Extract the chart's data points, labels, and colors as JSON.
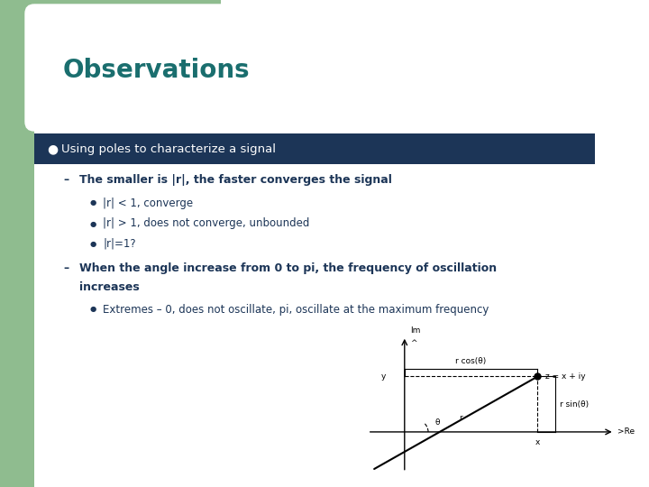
{
  "title": "Observations",
  "title_color": "#1a6e6e",
  "title_fontsize": 20,
  "bg_color": "#ffffff",
  "left_bar_color": "#8fbc8f",
  "header_bar_color": "#1c3557",
  "text_color": "#1c3557",
  "bullet1": "Using poles to characterize a signal",
  "sub1": "The smaller is |r|, the faster converges the signal",
  "sub1_bullets": [
    "|r| < 1, converge",
    "|r| > 1, does not converge, unbounded",
    "|r|=1?"
  ],
  "sub2line1": "When the angle increase from 0 to pi, the frequency of oscillation",
  "sub2line2": "increases",
  "sub2_bullet": "Extremes – 0, does not oscillate, pi, oscillate at the maximum frequency",
  "diagram": {
    "r_label": "r",
    "angle_label": "θ",
    "x_label": "x",
    "y_label": "y",
    "re_label": ">Re",
    "im_label": "Im",
    "z_label": "z = x + iy",
    "r_cos_label": "r cos(θ)",
    "r_sin_label": "r sin(θ)"
  }
}
